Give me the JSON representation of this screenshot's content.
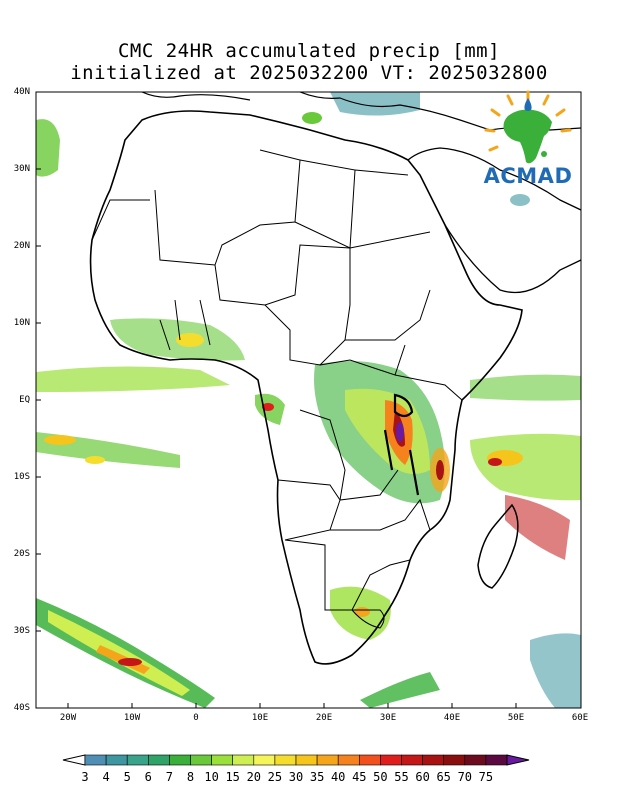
{
  "title_line1": "CMC 24HR accumulated precip [mm]",
  "title_line2": "initialized at 2025032200 VT: 2025032800",
  "logo": {
    "icon": "acmad-africa-logo-icon",
    "text": "ACMAD"
  },
  "lat_labels": [
    "40N",
    "30N",
    "20N",
    "10N",
    "EQ",
    "10S",
    "20S",
    "30S",
    "40S"
  ],
  "lon_labels": [
    "20W",
    "10W",
    "0",
    "10E",
    "20E",
    "30E",
    "40E",
    "50E",
    "60E"
  ],
  "colorbar": {
    "labels": [
      "3",
      "4",
      "5",
      "6",
      "7",
      "8",
      "10",
      "15",
      "20",
      "25",
      "30",
      "35",
      "40",
      "45",
      "50",
      "55",
      "60",
      "65",
      "70",
      "75"
    ],
    "colors": [
      "#4f8fb5",
      "#3d96a0",
      "#3aa48a",
      "#2fa368",
      "#3ab03a",
      "#69c93a",
      "#9be03a",
      "#cfee52",
      "#f5f55a",
      "#f5dd2e",
      "#f5c51c",
      "#f5a51a",
      "#f5821c",
      "#f2501d",
      "#e01e1e",
      "#c41818",
      "#a81212",
      "#8a0e0e",
      "#6e0a1e",
      "#5a0a40",
      "#6a1aa0"
    ]
  }
}
